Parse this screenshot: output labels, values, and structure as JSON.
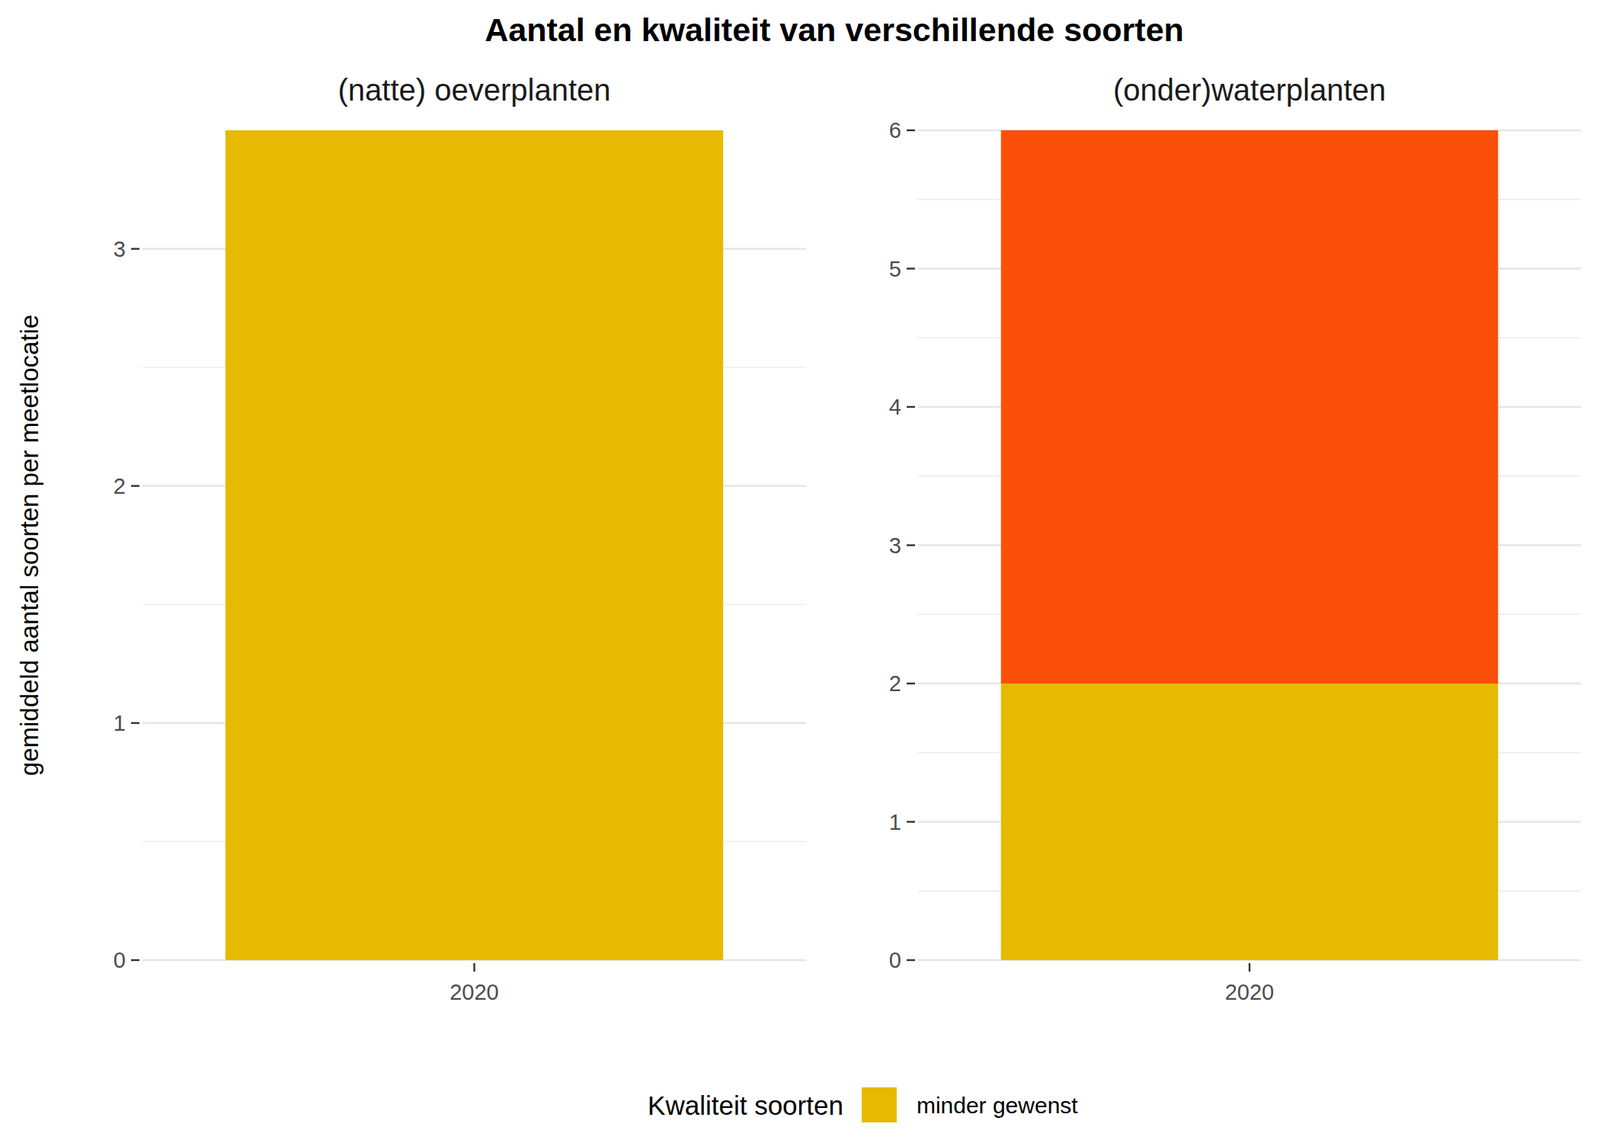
{
  "chart_data": [
    {
      "type": "bar",
      "stacked": true,
      "grid": true,
      "figure_title": "Aantal en kwaliteit van verschillende soorten",
      "y_label": "gemiddeld aantal soorten per meetlocatie",
      "legend_title": "Kwaliteit soorten",
      "legend": "bottom",
      "title": "(natte) oeverplanten",
      "categories": [
        "2020"
      ],
      "series": [
        {
          "name": "minder gewenst",
          "color": "#E6BA00",
          "values": [
            3.5
          ]
        }
      ],
      "ylim": [
        0,
        3.5
      ],
      "yticks": [
        0,
        1,
        2,
        3
      ]
    },
    {
      "type": "bar",
      "stacked": true,
      "grid": true,
      "title": "(onder)waterplanten",
      "categories": [
        "2020"
      ],
      "series": [
        {
          "name": "minder gewenst",
          "color": "#E6BA00",
          "values": [
            2
          ]
        },
        {
          "name": null,
          "color": "#FC4F0A",
          "values": [
            4
          ]
        }
      ],
      "ylim": [
        0,
        6
      ],
      "yticks": [
        0,
        1,
        2,
        3,
        4,
        5,
        6
      ]
    }
  ]
}
